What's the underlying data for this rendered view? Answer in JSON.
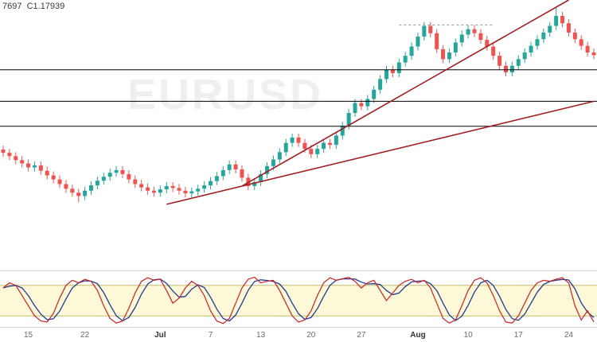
{
  "header": {
    "ohlc_text": "7697  C1.17939"
  },
  "watermark": {
    "symbol": "EURUSD"
  },
  "colors": {
    "up": "#26a69a",
    "down": "#ef5350",
    "level_line": "#000000",
    "dashed_line": "#999999",
    "trend_line": "#9f1f23",
    "stoch_k": "#cc2222",
    "stoch_d": "#223a8f",
    "band_fill": "#fdf8d8",
    "band_line": "#c4bd6d",
    "separator": "#d6d6d6",
    "tick_minor": "#6a6a6a",
    "tick_major": "#333333"
  },
  "chart_data": [
    {
      "type": "candlestick",
      "name": "EURUSD price",
      "price_range": [
        1.117,
        1.196
      ],
      "first_open": 1.151,
      "wick": 0.0012,
      "closes": [
        1.15,
        1.149,
        1.1478,
        1.1468,
        1.1456,
        1.1462,
        1.1446,
        1.1432,
        1.142,
        1.1406,
        1.1392,
        1.138,
        1.137,
        1.1386,
        1.1402,
        1.1416,
        1.1428,
        1.144,
        1.1448,
        1.1436,
        1.142,
        1.1406,
        1.1396,
        1.1386,
        1.138,
        1.139,
        1.14,
        1.1394,
        1.1386,
        1.1378,
        1.1384,
        1.1392,
        1.1402,
        1.1415,
        1.143,
        1.1448,
        1.1465,
        1.145,
        1.1425,
        1.14,
        1.1412,
        1.1436,
        1.146,
        1.148,
        1.1502,
        1.153,
        1.1546,
        1.153,
        1.1512,
        1.1496,
        1.1512,
        1.153,
        1.1524,
        1.1552,
        1.1582,
        1.162,
        1.165,
        1.164,
        1.1662,
        1.169,
        1.1722,
        1.175,
        1.174,
        1.1772,
        1.1792,
        1.182,
        1.185,
        1.1882,
        1.186,
        1.1812,
        1.1782,
        1.1802,
        1.1832,
        1.1856,
        1.1872,
        1.186,
        1.184,
        1.182,
        1.1792,
        1.1762,
        1.1742,
        1.1762,
        1.1782,
        1.1802,
        1.1822,
        1.1842,
        1.1862,
        1.1882,
        1.1912,
        1.189,
        1.1862,
        1.1842,
        1.1822,
        1.1802,
        1.17939
      ],
      "wick_overrides": {
        "12": {
          "low": 1.1352
        },
        "88": {
          "high": 1.194
        }
      },
      "levels": [
        1.175,
        1.1655,
        1.158
      ],
      "dashed_level": {
        "price": 1.1885,
        "from": 63,
        "to": 78
      },
      "trendlines": [
        {
          "from": [
            38,
            1.14
          ],
          "to": [
            90,
            1.196
          ]
        },
        {
          "from": [
            26,
            1.1345
          ],
          "to": [
            94,
            1.1655
          ]
        }
      ]
    },
    {
      "type": "line",
      "name": "stochastic oscillator",
      "range": [
        0,
        100
      ],
      "band": [
        20,
        80
      ],
      "k_values": [
        75,
        85,
        80,
        60,
        40,
        20,
        10,
        8,
        25,
        55,
        80,
        90,
        85,
        92,
        88,
        70,
        40,
        15,
        6,
        10,
        35,
        65,
        88,
        95,
        90,
        92,
        70,
        45,
        55,
        75,
        88,
        80,
        60,
        30,
        10,
        5,
        15,
        45,
        75,
        92,
        96,
        85,
        88,
        90,
        70,
        45,
        20,
        8,
        12,
        30,
        60,
        85,
        95,
        90,
        93,
        96,
        88,
        75,
        85,
        90,
        70,
        50,
        65,
        80,
        88,
        92,
        85,
        90,
        75,
        45,
        15,
        6,
        12,
        40,
        70,
        90,
        95,
        85,
        60,
        30,
        8,
        6,
        20,
        45,
        70,
        85,
        90,
        88,
        92,
        95,
        85,
        40,
        12,
        30,
        8
      ]
    }
  ],
  "x_axis": {
    "ticks": [
      {
        "label": "15",
        "idx": 4,
        "major": false
      },
      {
        "label": "22",
        "idx": 13,
        "major": false
      },
      {
        "label": "Jul",
        "idx": 25,
        "major": true
      },
      {
        "label": "7",
        "idx": 33,
        "major": false
      },
      {
        "label": "13",
        "idx": 41,
        "major": false
      },
      {
        "label": "20",
        "idx": 49,
        "major": false
      },
      {
        "label": "27",
        "idx": 57,
        "major": false
      },
      {
        "label": "Aug",
        "idx": 66,
        "major": true
      },
      {
        "label": "10",
        "idx": 74,
        "major": false
      },
      {
        "label": "17",
        "idx": 82,
        "major": false
      },
      {
        "label": "24",
        "idx": 90,
        "major": false
      }
    ]
  }
}
